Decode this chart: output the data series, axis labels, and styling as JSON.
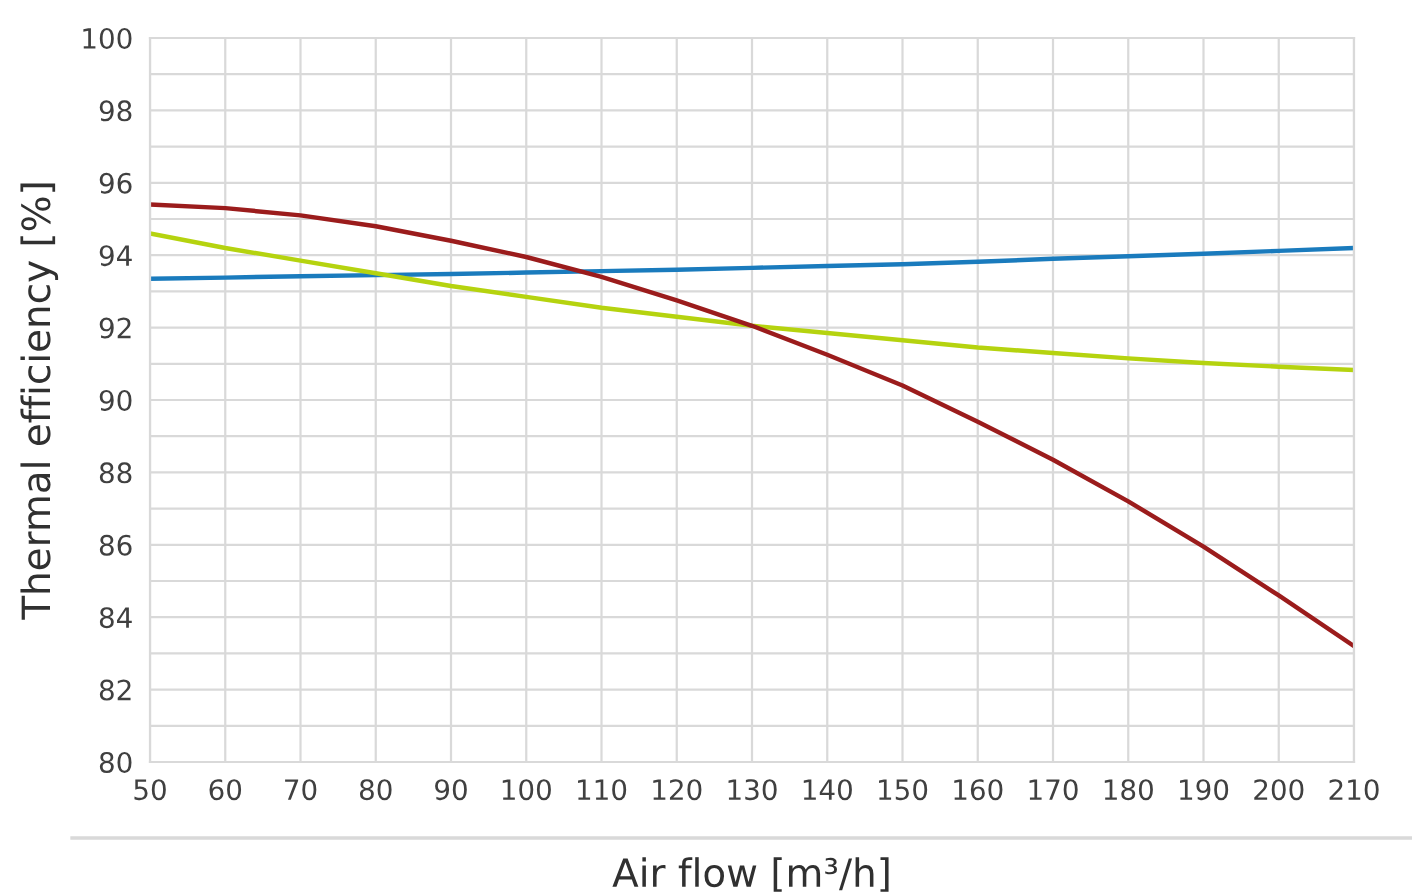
{
  "chart_data": {
    "type": "line",
    "xlabel": "Air flow [m³/h]",
    "ylabel": "Thermal efficiency [%]",
    "x": [
      50,
      60,
      70,
      80,
      90,
      100,
      110,
      120,
      130,
      140,
      150,
      160,
      170,
      180,
      190,
      200,
      210
    ],
    "series": [
      {
        "color": "#1a7bbd",
        "values": [
          93.35,
          93.38,
          93.42,
          93.45,
          93.48,
          93.52,
          93.56,
          93.6,
          93.65,
          93.7,
          93.75,
          93.82,
          93.9,
          93.97,
          94.04,
          94.12,
          94.2
        ]
      },
      {
        "color": "#b5d30f",
        "values": [
          94.6,
          94.2,
          93.85,
          93.5,
          93.15,
          92.85,
          92.55,
          92.3,
          92.05,
          91.85,
          91.65,
          91.45,
          91.3,
          91.15,
          91.02,
          90.92,
          90.83
        ]
      },
      {
        "color": "#9b1c1c",
        "values": [
          95.4,
          95.3,
          95.1,
          94.8,
          94.4,
          93.95,
          93.4,
          92.75,
          92.05,
          91.25,
          90.4,
          89.4,
          88.35,
          87.2,
          85.95,
          84.6,
          83.2
        ]
      }
    ],
    "xlim": [
      50,
      210
    ],
    "xticks": [
      50,
      60,
      70,
      80,
      90,
      100,
      110,
      120,
      130,
      140,
      150,
      160,
      170,
      180,
      190,
      200,
      210
    ],
    "ylim": [
      80,
      100
    ],
    "yticks": [
      80,
      {
        "value": 81,
        "label": null
      },
      82,
      {
        "value": 83,
        "label": null
      },
      84,
      {
        "value": 85,
        "label": null
      },
      86,
      {
        "value": 87,
        "label": null
      },
      88,
      {
        "value": 89,
        "label": null
      },
      90,
      {
        "value": 91,
        "label": null
      },
      92,
      {
        "value": 93,
        "label": null
      },
      94,
      {
        "value": 95,
        "label": null
      },
      96,
      {
        "value": 97,
        "label": null
      },
      98,
      {
        "value": 99,
        "label": null
      },
      100
    ],
    "grid": true,
    "marker": "none",
    "line_style": "solid",
    "legend": false
  }
}
